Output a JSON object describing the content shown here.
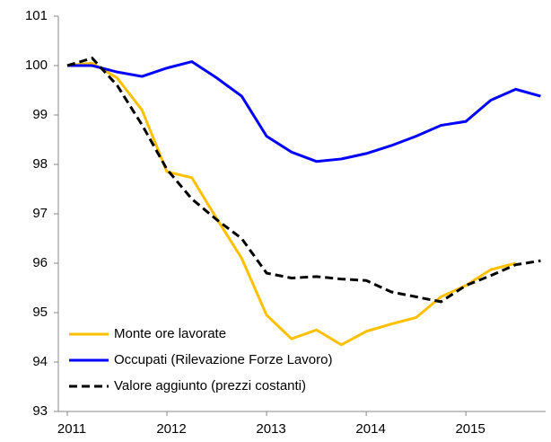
{
  "chart_data": {
    "type": "line",
    "x": [
      2011,
      2011.25,
      2011.5,
      2011.75,
      2012,
      2012.25,
      2012.5,
      2012.75,
      2013,
      2013.25,
      2013.5,
      2013.75,
      2014,
      2014.25,
      2014.5,
      2014.75,
      2015,
      2015.25,
      2015.5,
      2015.75
    ],
    "series": [
      {
        "name": "Monte ore lavorate",
        "color": "#ffc000",
        "dash": false,
        "values": [
          100.0,
          100.05,
          99.75,
          99.1,
          97.85,
          97.73,
          96.9,
          96.1,
          94.95,
          94.47,
          94.65,
          94.35,
          94.62,
          94.77,
          94.9,
          95.32,
          95.55,
          95.87,
          96.0,
          null
        ]
      },
      {
        "name": "Occupati (Rilevazione Forze Lavoro)",
        "color": "#0000ff",
        "dash": false,
        "values": [
          100.0,
          100.0,
          99.87,
          99.78,
          99.95,
          100.08,
          99.75,
          99.38,
          98.57,
          98.25,
          98.06,
          98.11,
          98.22,
          98.38,
          98.57,
          98.79,
          98.87,
          99.3,
          99.52,
          99.38
        ]
      },
      {
        "name": "Valore aggiunto (prezzi costanti)",
        "color": "#000000",
        "dash": true,
        "values": [
          100.0,
          100.15,
          99.6,
          98.8,
          97.9,
          97.3,
          96.88,
          96.5,
          95.8,
          95.7,
          95.73,
          95.68,
          95.65,
          95.42,
          95.32,
          95.22,
          95.55,
          95.75,
          95.97,
          96.05
        ]
      }
    ],
    "xlim": [
      2010.91,
      2015.8
    ],
    "xticks": [
      2011,
      2012,
      2013,
      2014,
      2015
    ],
    "ylim": [
      93,
      101
    ],
    "yticks": [
      93,
      94,
      95,
      96,
      97,
      98,
      99,
      100,
      101
    ],
    "grid": false,
    "legend": "lower left"
  }
}
